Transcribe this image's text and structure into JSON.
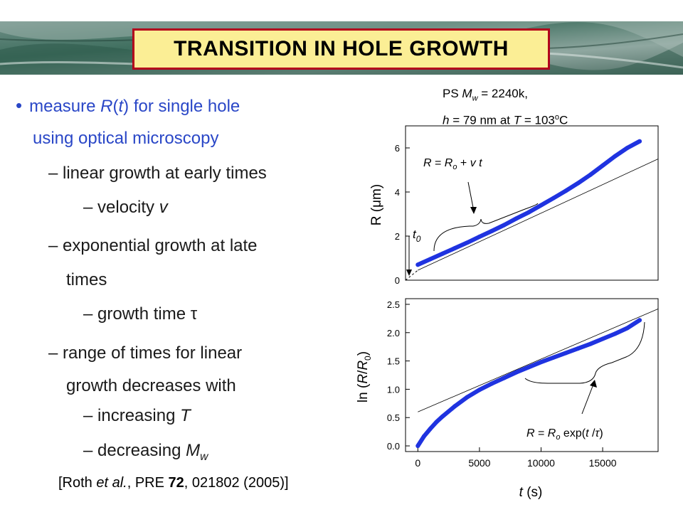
{
  "slide": {
    "title": "TRANSITION IN HOLE GROWTH",
    "bullets": {
      "b1": {
        "pre": "measure ",
        "R": "R",
        "paren1": "(",
        "t": "t",
        "paren2": ")",
        "post": " for single hole"
      },
      "b1_cont": "using optical microscopy",
      "s1": "– linear growth at early times",
      "s1a": {
        "pre": "– velocity ",
        "v": "v"
      },
      "s2": "– exponential growth at late",
      "s2_cont": "times",
      "s2a": {
        "pre": "– growth time ",
        "tau": "τ"
      },
      "s3": "– range of times for linear",
      "s3_cont": "growth decreases with",
      "s3a": {
        "pre": "– increasing ",
        "T": "T"
      },
      "s3b": {
        "pre": "– decreasing ",
        "M": "M",
        "sub": "w"
      }
    },
    "citation": {
      "pre": "[Roth ",
      "etal": "et al.",
      "mid": ", PRE ",
      "vol": "72",
      "post": ", 021802 (2005)]"
    },
    "params": {
      "line1": {
        "pre": "PS  ",
        "M": "M",
        "sub": "w",
        "post": " = 2240k,"
      },
      "line2": {
        "h": "h",
        "mid": " = 79 nm at ",
        "T": "T",
        "eq": " = 103",
        "sup": "o",
        "post": "C"
      }
    }
  },
  "colors": {
    "accent_text": "#2a47c7",
    "data_points": "#1f33e0",
    "title_bg": "#fbee95",
    "title_border": "#b3001b"
  },
  "chart_data": [
    {
      "type": "scatter",
      "title": "",
      "xlabel": "",
      "ylabel": "R (μm)",
      "ylim": [
        0,
        7
      ],
      "yticks": [
        0,
        2,
        4,
        6
      ],
      "xlim": [
        -1000,
        19500
      ],
      "grid": false,
      "series": [
        {
          "kind": "points",
          "x": [
            0,
            1000,
            2000,
            3000,
            4000,
            5000,
            6000,
            7000,
            8000,
            9000,
            10000,
            11000,
            12000,
            13000,
            14000,
            15000,
            16000,
            17000,
            18000
          ],
          "y": [
            0.7,
            0.95,
            1.2,
            1.45,
            1.7,
            1.97,
            2.23,
            2.5,
            2.8,
            3.08,
            3.4,
            3.72,
            4.05,
            4.4,
            4.78,
            5.2,
            5.62,
            6.0,
            6.3
          ]
        },
        {
          "kind": "fit_line",
          "x": [
            0,
            19500
          ],
          "y": [
            0.45,
            5.5
          ]
        },
        {
          "kind": "dashed_extrapolation",
          "x": [
            -1000,
            0
          ],
          "y": [
            0,
            0.45
          ]
        }
      ],
      "annotations": {
        "fit_label": {
          "R1": "R",
          "eq1": " = ",
          "R2": "R",
          "sub": "o",
          "plus": " + ",
          "v": "v",
          "sp": " ",
          "t": "t"
        },
        "t0_label": {
          "t": "t",
          "sub": "0"
        }
      }
    },
    {
      "type": "scatter",
      "title": "",
      "xlabel": "t (s)",
      "ylabel": "ln (R/R0)",
      "ylim": [
        -0.1,
        2.6
      ],
      "yticks": [
        0.0,
        0.5,
        1.0,
        1.5,
        2.0,
        2.5
      ],
      "ytick_labels": [
        "0.0",
        "0.5",
        "1.0",
        "1.5",
        "2.0",
        "2.5"
      ],
      "xlim": [
        -1000,
        19500
      ],
      "xticks": [
        0,
        5000,
        10000,
        15000
      ],
      "xtick_labels": [
        "0",
        "5000",
        "10000",
        "15000"
      ],
      "grid": false,
      "series": [
        {
          "kind": "points",
          "x": [
            0,
            500,
            1000,
            1500,
            2000,
            3000,
            4000,
            5000,
            6000,
            7000,
            8000,
            9000,
            10000,
            11000,
            12000,
            13000,
            14000,
            15000,
            16000,
            17000,
            18000
          ],
          "y": [
            0.0,
            0.17,
            0.3,
            0.42,
            0.52,
            0.7,
            0.86,
            0.99,
            1.1,
            1.2,
            1.3,
            1.39,
            1.48,
            1.56,
            1.64,
            1.72,
            1.8,
            1.89,
            1.98,
            2.08,
            2.22
          ]
        },
        {
          "kind": "fit_line",
          "x": [
            0,
            19500
          ],
          "y": [
            0.6,
            2.42
          ]
        }
      ],
      "annotations": {
        "fit_label": {
          "R1": "R",
          "eq1": " = ",
          "R2": "R",
          "sub": "o",
          "exp": " exp(",
          "t": "t",
          "slash": " /",
          "tau": "τ",
          "close": ")"
        }
      }
    }
  ]
}
